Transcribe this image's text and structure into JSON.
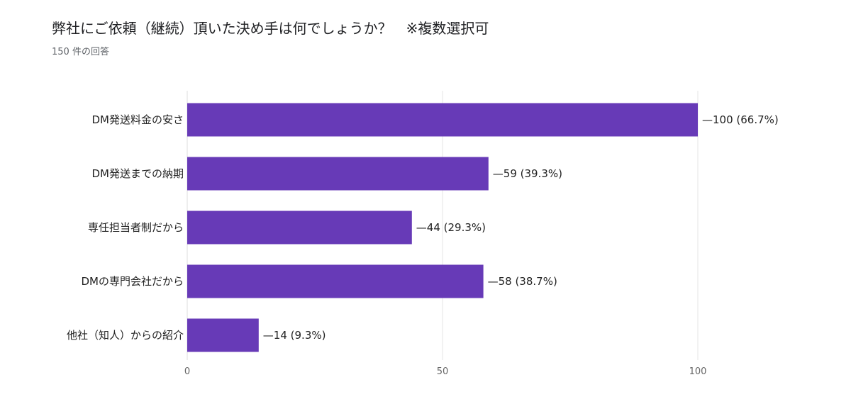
{
  "header": {
    "title": "弊社にご依頼（継続）頂いた決め手は何でしょうか？　※複数選択可",
    "subtitle": "150 件の回答"
  },
  "colors": {
    "bar": "#673ab7",
    "grid": "#e6e6e6",
    "axis": "#dddddd"
  },
  "chart_data": {
    "type": "bar",
    "orientation": "horizontal",
    "categories": [
      "DM発送料金の安さ",
      "DM発送までの納期",
      "専任担当者制だから",
      "DMの専門会社だから",
      "他社（知人）からの紹介"
    ],
    "values": [
      100,
      59,
      44,
      58,
      14
    ],
    "value_labels": [
      "100 (66.7%)",
      "59 (39.3%)",
      "44 (29.3%)",
      "58 (38.7%)",
      "14 (9.3%)"
    ],
    "xticks": [
      0,
      50,
      100
    ],
    "xlim": [
      0,
      100
    ],
    "grid": true
  }
}
